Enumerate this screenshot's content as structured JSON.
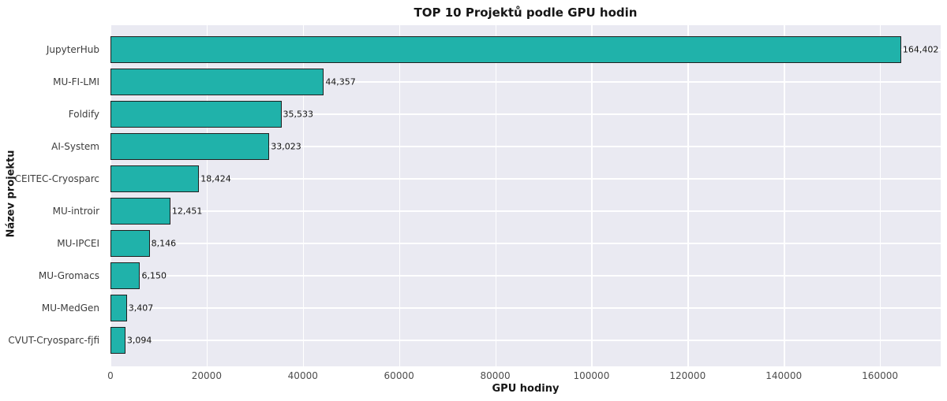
{
  "chart_data": {
    "type": "bar",
    "orientation": "horizontal",
    "title": "TOP 10 Projektů podle GPU hodin",
    "xlabel": "GPU hodiny",
    "ylabel": "Název projektu",
    "categories": [
      "JupyterHub",
      "MU-FI-LMI",
      "Foldify",
      "AI-System",
      "CEITEC-Cryosparc",
      "MU-introir",
      "MU-IPCEI",
      "MU-Gromacs",
      "MU-MedGen",
      "CVUT-Cryosparc-fjfi"
    ],
    "values": [
      164402,
      44357,
      35533,
      33023,
      18424,
      12451,
      8146,
      6150,
      3407,
      3094
    ],
    "value_labels": [
      "164,402",
      "44,357",
      "35,533",
      "33,023",
      "18,424",
      "12,451",
      "8,146",
      "6,150",
      "3,407",
      "3,094"
    ],
    "xticks": [
      0,
      20000,
      40000,
      60000,
      80000,
      100000,
      120000,
      140000,
      160000
    ],
    "xtick_labels": [
      "0",
      "20000",
      "40000",
      "60000",
      "80000",
      "100000",
      "120000",
      "140000",
      "160000"
    ],
    "xlim": [
      0,
      172622
    ],
    "grid": true,
    "legend": false,
    "colors": {
      "bar_fill": "#20b2aa",
      "bar_edge": "#1f1f1f",
      "plot_bg": "#eaeaf2",
      "grid": "#ffffff",
      "figure_bg": "#ffffff"
    }
  }
}
